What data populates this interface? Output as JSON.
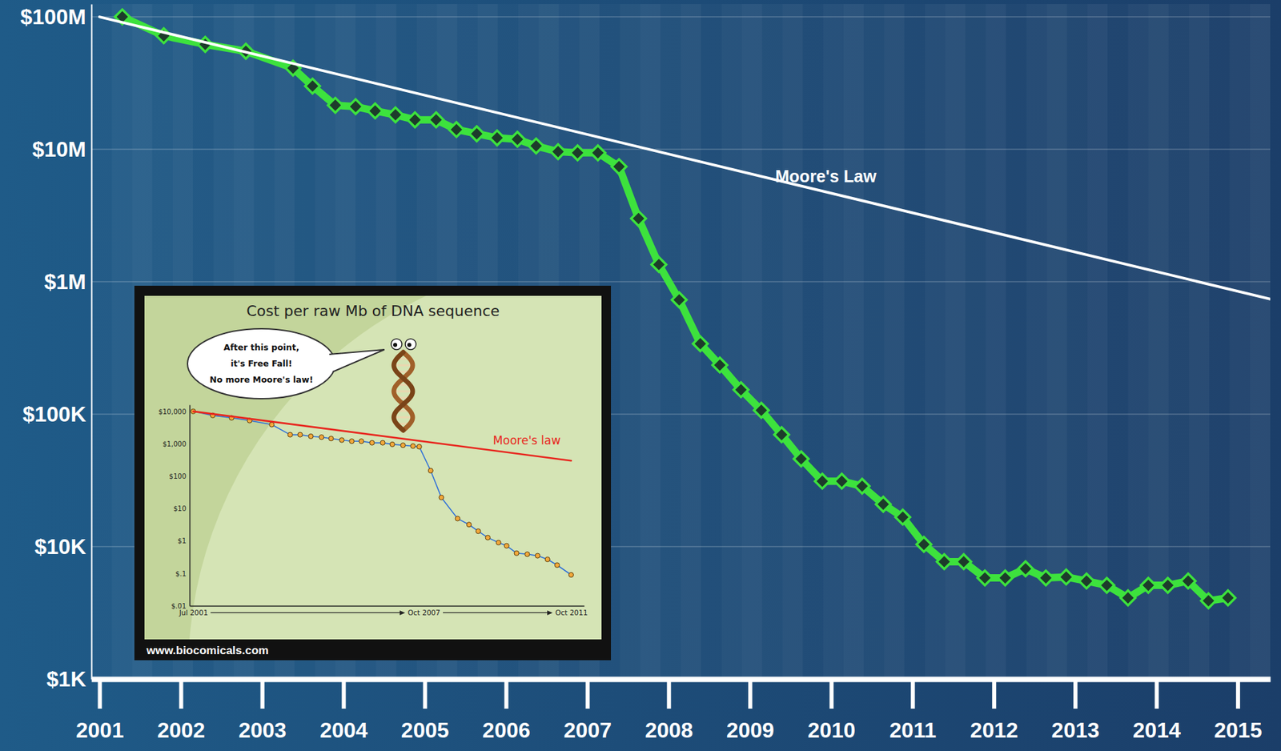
{
  "chart_data": [
    {
      "type": "line",
      "xlim": [
        2000.9,
        2015.4
      ],
      "xticks": [
        2001,
        2002,
        2003,
        2004,
        2005,
        2006,
        2007,
        2008,
        2009,
        2010,
        2011,
        2012,
        2013,
        2014,
        2015
      ],
      "ylim": [
        1000,
        125000000
      ],
      "yticks": [
        {
          "value": 100000000,
          "label": "$100M"
        },
        {
          "value": 10000000,
          "label": "$10M"
        },
        {
          "value": 1000000,
          "label": "$1M"
        },
        {
          "value": 100000,
          "label": "$100K"
        },
        {
          "value": 10000,
          "label": "$10K"
        },
        {
          "value": 1000,
          "label": "$1K"
        }
      ],
      "log": "y",
      "grid": true,
      "series": [
        {
          "color": "#3de23d",
          "marker": "diamond",
          "line_style": "solid",
          "x": [
            2001.28,
            2001.79,
            2002.3,
            2002.8,
            2003.38,
            2003.62,
            2003.9,
            2004.15,
            2004.39,
            2004.64,
            2004.88,
            2005.14,
            2005.39,
            2005.64,
            2005.89,
            2006.14,
            2006.37,
            2006.64,
            2006.88,
            2007.13,
            2007.39,
            2007.63,
            2007.88,
            2008.13,
            2008.39,
            2008.63,
            2008.89,
            2009.14,
            2009.39,
            2009.63,
            2009.89,
            2010.13,
            2010.38,
            2010.64,
            2010.88,
            2011.14,
            2011.39,
            2011.63,
            2011.89,
            2012.14,
            2012.39,
            2012.64,
            2012.89,
            2013.14,
            2013.39,
            2013.65,
            2013.9,
            2014.14,
            2014.39,
            2014.64,
            2014.88
          ],
          "values": [
            100000000,
            72000000,
            62000000,
            55000000,
            41000000,
            30000000,
            21500000,
            21000000,
            19500000,
            18200000,
            16700000,
            16700000,
            14100000,
            13100000,
            12200000,
            11900000,
            10600000,
            9600000,
            9400000,
            9400000,
            7400000,
            3000000,
            1350000,
            730000,
            340000,
            235000,
            153000,
            107000,
            70000,
            46000,
            31200,
            31200,
            28600,
            20900,
            16700,
            10400,
            7700,
            7700,
            5800,
            5800,
            6800,
            5800,
            5900,
            5500,
            5100,
            4100,
            5100,
            5100,
            5500,
            3900,
            4100
          ]
        },
        {
          "name": "Moore's Law",
          "color": "#ffffff",
          "marker": "none",
          "line_style": "solid",
          "x": [
            2001,
            2015.4
          ],
          "values": [
            100000000,
            740000
          ]
        }
      ]
    },
    {
      "type": "line",
      "title": "Cost per raw Mb of DNA sequence",
      "xlim": [
        2001.4,
        2012.1
      ],
      "xticks": [
        {
          "value": 2001.5,
          "label": "Jul 2001"
        },
        {
          "value": 2007.75,
          "label": "Oct 2007"
        },
        {
          "value": 2011.75,
          "label": "Oct 2011"
        }
      ],
      "ylim": [
        0.01,
        16000
      ],
      "yticks": [
        {
          "value": 10000,
          "label": "$10,000"
        },
        {
          "value": 1000,
          "label": "$1,000"
        },
        {
          "value": 100,
          "label": "$100"
        },
        {
          "value": 10,
          "label": "$10"
        },
        {
          "value": 1,
          "label": "$1"
        },
        {
          "value": 0.1,
          "label": "$.1"
        },
        {
          "value": 0.01,
          "label": "$.01"
        }
      ],
      "log": "y",
      "grid": false,
      "series": [
        {
          "color": "#2e6fd8",
          "marker": "circle",
          "line_style": "solid",
          "x": [
            2001.5,
            2002.03,
            2002.54,
            2003.03,
            2003.63,
            2004.13,
            2004.4,
            2004.69,
            2004.98,
            2005.24,
            2005.53,
            2005.8,
            2006.06,
            2006.35,
            2006.64,
            2006.9,
            2007.19,
            2007.46,
            2007.63,
            2007.94,
            2008.23,
            2008.67,
            2008.98,
            2009.23,
            2009.49,
            2009.78,
            2010.0,
            2010.27,
            2010.56,
            2010.84,
            2011.11,
            2011.37,
            2011.75
          ],
          "values": [
            10000,
            7500,
            6300,
            5200,
            3900,
            1900,
            1900,
            1700,
            1600,
            1450,
            1300,
            1200,
            1200,
            1070,
            1070,
            960,
            900,
            850,
            810,
            148,
            22,
            4.9,
            3.2,
            2,
            1.27,
            0.89,
            0.71,
            0.42,
            0.39,
            0.35,
            0.27,
            0.18,
            0.09
          ]
        },
        {
          "name": "Moore's law",
          "color": "#e8261e",
          "marker": "none",
          "line_style": "solid",
          "x": [
            2001.5,
            2011.75
          ],
          "values": [
            10000,
            300
          ]
        }
      ],
      "annotations": [
        {
          "text": [
            "After this point,",
            "it's Free Fall!",
            "No more Moore's law!"
          ]
        },
        {
          "text": "www.biocomicals.com"
        }
      ]
    }
  ]
}
